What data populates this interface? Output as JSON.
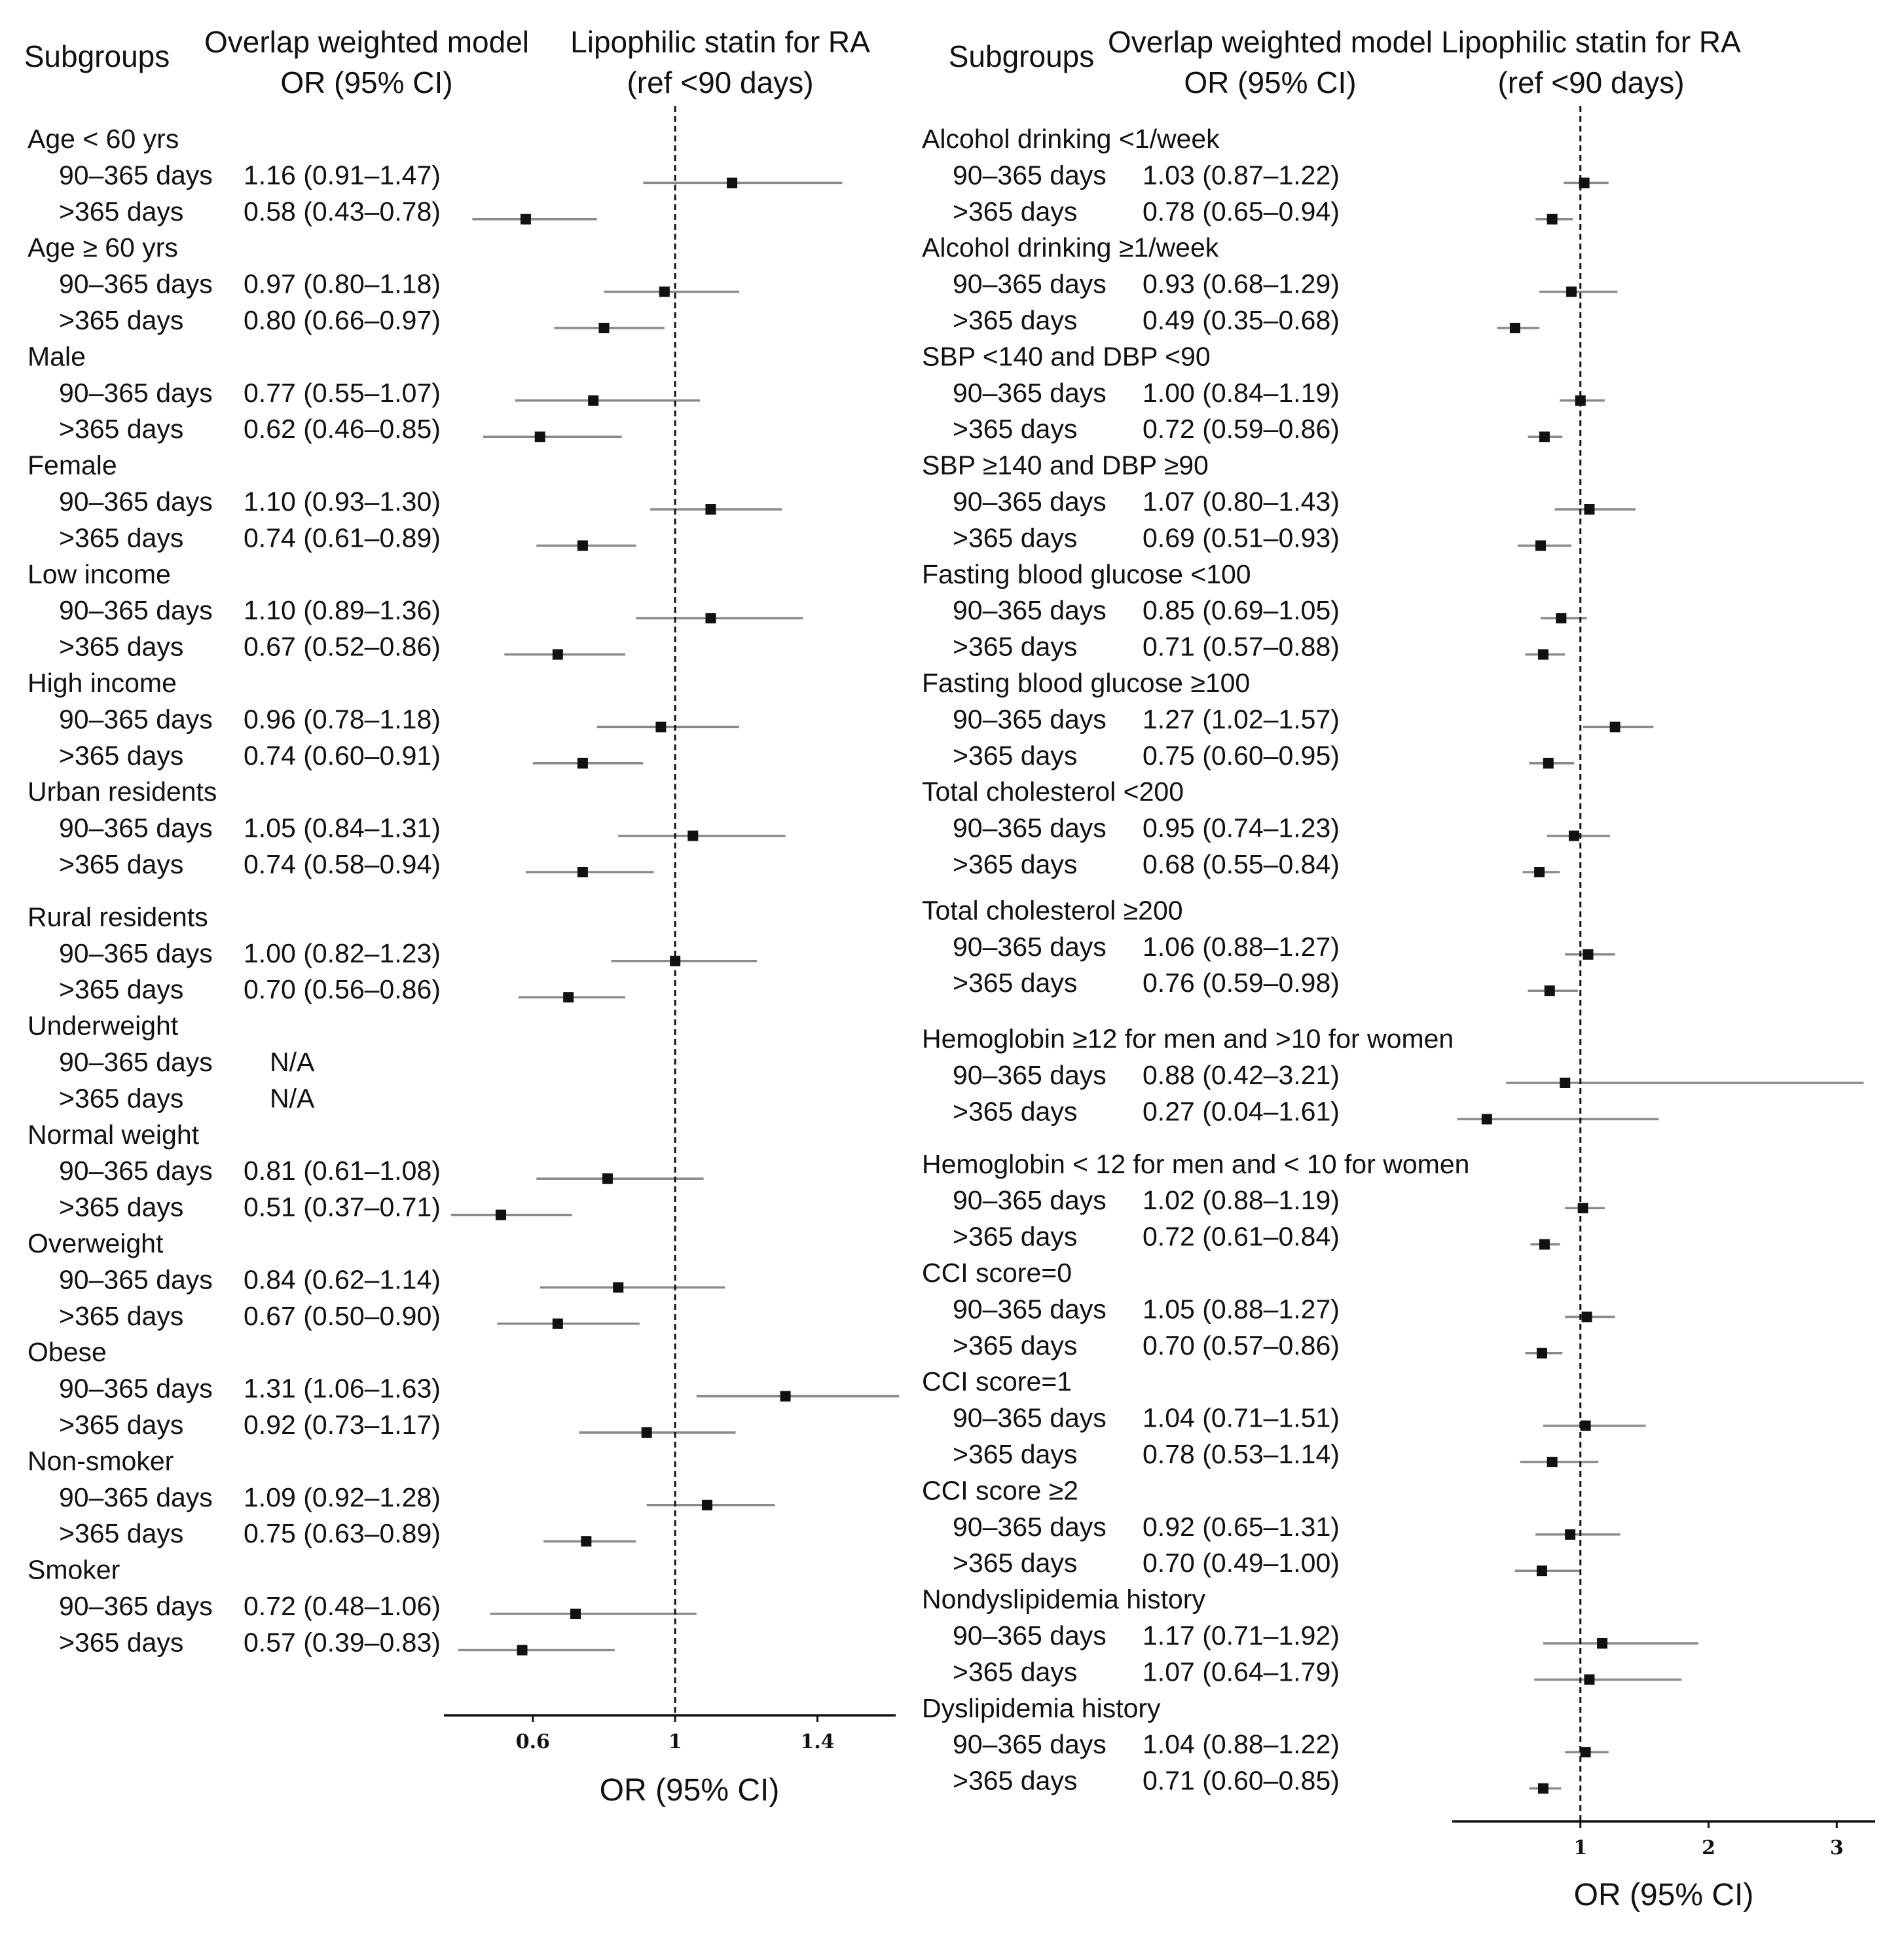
{
  "headers": {
    "left_subgroups": "Subgroups",
    "left_model_l1": "Overlap weighted model",
    "left_model_l2": "OR (95% CI)",
    "left_plot_l1": "Lipophilic statin  for RA",
    "left_plot_l2": "(ref <90 days)",
    "right_subgroups": "Subgroups",
    "right_model_l1": "Overlap weighted model",
    "right_model_l2": "OR (95% CI)",
    "right_plot_l1": "Lipophilic statin  for RA",
    "right_plot_l2": "(ref <90 days)"
  },
  "chart_data": [
    {
      "type": "forest",
      "xlabel": "OR (95% CI)",
      "reference_line": 1,
      "xlim": [
        0.35,
        1.62
      ],
      "xticks": [
        0.6,
        1,
        1.4
      ],
      "xtick_labels": [
        "0.6",
        "1",
        "1.4"
      ],
      "groups": [
        {
          "name": "Age < 60 yrs",
          "rows": [
            {
              "label": "90–365 days",
              "text": "1.16 (0.91–1.47)",
              "or": 1.16,
              "lo": 0.91,
              "hi": 1.47
            },
            {
              "label": ">365 days",
              "text": "0.58 (0.43–0.78)",
              "or": 0.58,
              "lo": 0.43,
              "hi": 0.78
            }
          ]
        },
        {
          "name": "Age ≥ 60 yrs",
          "rows": [
            {
              "label": "90–365 days",
              "text": "0.97 (0.80–1.18)",
              "or": 0.97,
              "lo": 0.8,
              "hi": 1.18
            },
            {
              "label": ">365 days",
              "text": "0.80 (0.66–0.97)",
              "or": 0.8,
              "lo": 0.66,
              "hi": 0.97
            }
          ]
        },
        {
          "name": "Male",
          "rows": [
            {
              "label": "90–365 days",
              "text": "0.77 (0.55–1.07)",
              "or": 0.77,
              "lo": 0.55,
              "hi": 1.07
            },
            {
              "label": ">365 days",
              "text": "0.62 (0.46–0.85)",
              "or": 0.62,
              "lo": 0.46,
              "hi": 0.85
            }
          ]
        },
        {
          "name": "Female",
          "rows": [
            {
              "label": "90–365 days",
              "text": "1.10 (0.93–1.30)",
              "or": 1.1,
              "lo": 0.93,
              "hi": 1.3
            },
            {
              "label": ">365 days",
              "text": "0.74 (0.61–0.89)",
              "or": 0.74,
              "lo": 0.61,
              "hi": 0.89
            }
          ]
        },
        {
          "name": "Low income",
          "rows": [
            {
              "label": "90–365 days",
              "text": "1.10 (0.89–1.36)",
              "or": 1.1,
              "lo": 0.89,
              "hi": 1.36
            },
            {
              "label": ">365 days",
              "text": "0.67 (0.52–0.86)",
              "or": 0.67,
              "lo": 0.52,
              "hi": 0.86
            }
          ]
        },
        {
          "name": "High income",
          "rows": [
            {
              "label": "90–365 days",
              "text": "0.96 (0.78–1.18)",
              "or": 0.96,
              "lo": 0.78,
              "hi": 1.18
            },
            {
              "label": ">365 days",
              "text": "0.74 (0.60–0.91)",
              "or": 0.74,
              "lo": 0.6,
              "hi": 0.91
            }
          ]
        },
        {
          "name": "Urban residents",
          "rows": [
            {
              "label": "90–365 days",
              "text": "1.05 (0.84–1.31)",
              "or": 1.05,
              "lo": 0.84,
              "hi": 1.31
            },
            {
              "label": ">365 days",
              "text": "0.74 (0.58–0.94)",
              "or": 0.74,
              "lo": 0.58,
              "hi": 0.94
            }
          ]
        },
        {
          "name": "Rural residents",
          "rows": [
            {
              "label": "90–365 days",
              "text": "1.00 (0.82–1.23)",
              "or": 1.0,
              "lo": 0.82,
              "hi": 1.23
            },
            {
              "label": ">365 days",
              "text": "0.70 (0.56–0.86)",
              "or": 0.7,
              "lo": 0.56,
              "hi": 0.86
            }
          ]
        },
        {
          "name": "Underweight",
          "rows": [
            {
              "label": "90–365 days",
              "text": "N/A",
              "or": null,
              "lo": null,
              "hi": null
            },
            {
              "label": ">365 days",
              "text": "N/A",
              "or": null,
              "lo": null,
              "hi": null
            }
          ]
        },
        {
          "name": "Normal weight",
          "rows": [
            {
              "label": "90–365 days",
              "text": "0.81 (0.61–1.08)",
              "or": 0.81,
              "lo": 0.61,
              "hi": 1.08
            },
            {
              "label": ">365 days",
              "text": "0.51 (0.37–0.71)",
              "or": 0.51,
              "lo": 0.37,
              "hi": 0.71
            }
          ]
        },
        {
          "name": "Overweight",
          "rows": [
            {
              "label": "90–365 days",
              "text": "0.84 (0.62–1.14)",
              "or": 0.84,
              "lo": 0.62,
              "hi": 1.14
            },
            {
              "label": ">365 days",
              "text": "0.67 (0.50–0.90)",
              "or": 0.67,
              "lo": 0.5,
              "hi": 0.9
            }
          ]
        },
        {
          "name": "Obese",
          "rows": [
            {
              "label": "90–365 days",
              "text": "1.31 (1.06–1.63)",
              "or": 1.31,
              "lo": 1.06,
              "hi": 1.63
            },
            {
              "label": ">365 days",
              "text": "0.92 (0.73–1.17)",
              "or": 0.92,
              "lo": 0.73,
              "hi": 1.17
            }
          ]
        },
        {
          "name": "Non-smoker",
          "rows": [
            {
              "label": "90–365 days",
              "text": "1.09 (0.92–1.28)",
              "or": 1.09,
              "lo": 0.92,
              "hi": 1.28
            },
            {
              "label": ">365 days",
              "text": "0.75 (0.63–0.89)",
              "or": 0.75,
              "lo": 0.63,
              "hi": 0.89
            }
          ]
        },
        {
          "name": "Smoker",
          "rows": [
            {
              "label": "90–365 days",
              "text": "0.72 (0.48–1.06)",
              "or": 0.72,
              "lo": 0.48,
              "hi": 1.06
            },
            {
              "label": ">365 days",
              "text": "0.57 (0.39–0.83)",
              "or": 0.57,
              "lo": 0.39,
              "hi": 0.83
            }
          ]
        }
      ]
    },
    {
      "type": "forest",
      "xlabel": "OR (95% CI)",
      "reference_line": 1,
      "xlim": [
        0.0,
        3.3
      ],
      "xticks": [
        1,
        2,
        3
      ],
      "xtick_labels": [
        "1",
        "2",
        "3"
      ],
      "groups": [
        {
          "name": "Alcohol drinking <1/week",
          "rows": [
            {
              "label": "90–365 days",
              "text": "1.03 (0.87–1.22)",
              "or": 1.03,
              "lo": 0.87,
              "hi": 1.22
            },
            {
              "label": ">365 days",
              "text": "0.78 (0.65–0.94)",
              "or": 0.78,
              "lo": 0.65,
              "hi": 0.94
            }
          ]
        },
        {
          "name": "Alcohol drinking ≥1/week",
          "rows": [
            {
              "label": "90–365 days",
              "text": "0.93 (0.68–1.29)",
              "or": 0.93,
              "lo": 0.68,
              "hi": 1.29
            },
            {
              "label": ">365 days",
              "text": "0.49 (0.35–0.68)",
              "or": 0.49,
              "lo": 0.35,
              "hi": 0.68
            }
          ]
        },
        {
          "name": "SBP <140 and DBP <90",
          "rows": [
            {
              "label": "90–365 days",
              "text": "1.00 (0.84–1.19)",
              "or": 1.0,
              "lo": 0.84,
              "hi": 1.19
            },
            {
              "label": ">365 days",
              "text": "0.72 (0.59–0.86)",
              "or": 0.72,
              "lo": 0.59,
              "hi": 0.86
            }
          ]
        },
        {
          "name": "SBP ≥140 and DBP ≥90",
          "rows": [
            {
              "label": "90–365 days",
              "text": "1.07 (0.80–1.43)",
              "or": 1.07,
              "lo": 0.8,
              "hi": 1.43
            },
            {
              "label": ">365 days",
              "text": "0.69 (0.51–0.93)",
              "or": 0.69,
              "lo": 0.51,
              "hi": 0.93
            }
          ]
        },
        {
          "name": "Fasting blood glucose <100",
          "rows": [
            {
              "label": "90–365 days",
              "text": "0.85 (0.69–1.05)",
              "or": 0.85,
              "lo": 0.69,
              "hi": 1.05
            },
            {
              "label": ">365 days",
              "text": "0.71 (0.57–0.88)",
              "or": 0.71,
              "lo": 0.57,
              "hi": 0.88
            }
          ]
        },
        {
          "name": "Fasting blood glucose ≥100",
          "rows": [
            {
              "label": "90–365 days",
              "text": "1.27 (1.02–1.57)",
              "or": 1.27,
              "lo": 1.02,
              "hi": 1.57
            },
            {
              "label": ">365 days",
              "text": "0.75 (0.60–0.95)",
              "or": 0.75,
              "lo": 0.6,
              "hi": 0.95
            }
          ]
        },
        {
          "name": "Total cholesterol <200",
          "rows": [
            {
              "label": "90–365 days",
              "text": "0.95 (0.74–1.23)",
              "or": 0.95,
              "lo": 0.74,
              "hi": 1.23
            },
            {
              "label": ">365 days",
              "text": "0.68 (0.55–0.84)",
              "or": 0.68,
              "lo": 0.55,
              "hi": 0.84
            }
          ]
        },
        {
          "name": "Total cholesterol ≥200",
          "rows": [
            {
              "label": "90–365 days",
              "text": "1.06 (0.88–1.27)",
              "or": 1.06,
              "lo": 0.88,
              "hi": 1.27
            },
            {
              "label": ">365 days",
              "text": "0.76 (0.59–0.98)",
              "or": 0.76,
              "lo": 0.59,
              "hi": 0.98
            }
          ]
        },
        {
          "name": "Hemoglobin ≥12 for men and >10  for women",
          "rows": [
            {
              "label": "90–365 days",
              "text": "0.88 (0.42–3.21)",
              "or": 0.88,
              "lo": 0.42,
              "hi": 3.21
            },
            {
              "label": ">365 days",
              "text": "0.27 (0.04–1.61)",
              "or": 0.27,
              "lo": 0.04,
              "hi": 1.61
            }
          ]
        },
        {
          "name": "Hemoglobin < 12 for men and < 10  for women",
          "rows": [
            {
              "label": "90–365 days",
              "text": "1.02 (0.88–1.19)",
              "or": 1.02,
              "lo": 0.88,
              "hi": 1.19
            },
            {
              "label": ">365 days",
              "text": "0.72 (0.61–0.84)",
              "or": 0.72,
              "lo": 0.61,
              "hi": 0.84
            }
          ]
        },
        {
          "name": "CCI score=0",
          "rows": [
            {
              "label": "90–365 days",
              "text": "1.05 (0.88–1.27)",
              "or": 1.05,
              "lo": 0.88,
              "hi": 1.27
            },
            {
              "label": ">365 days",
              "text": "0.70 (0.57–0.86)",
              "or": 0.7,
              "lo": 0.57,
              "hi": 0.86
            }
          ]
        },
        {
          "name": "CCI score=1",
          "rows": [
            {
              "label": "90–365 days",
              "text": "1.04 (0.71–1.51)",
              "or": 1.04,
              "lo": 0.71,
              "hi": 1.51
            },
            {
              "label": ">365 days",
              "text": "0.78 (0.53–1.14)",
              "or": 0.78,
              "lo": 0.53,
              "hi": 1.14
            }
          ]
        },
        {
          "name": "CCI score ≥2",
          "rows": [
            {
              "label": "90–365 days",
              "text": "0.92 (0.65–1.31)",
              "or": 0.92,
              "lo": 0.65,
              "hi": 1.31
            },
            {
              "label": ">365 days",
              "text": "0.70 (0.49–1.00)",
              "or": 0.7,
              "lo": 0.49,
              "hi": 1.0
            }
          ]
        },
        {
          "name": "Nondyslipidemia history",
          "rows": [
            {
              "label": "90–365 days",
              "text": "1.17 (0.71–1.92)",
              "or": 1.17,
              "lo": 0.71,
              "hi": 1.92
            },
            {
              "label": ">365 days",
              "text": "1.07 (0.64–1.79)",
              "or": 1.07,
              "lo": 0.64,
              "hi": 1.79
            }
          ]
        },
        {
          "name": "Dyslipidemia history",
          "rows": [
            {
              "label": "90–365 days",
              "text": "1.04 (0.88–1.22)",
              "or": 1.04,
              "lo": 0.88,
              "hi": 1.22
            },
            {
              "label": ">365 days",
              "text": "0.71 (0.60–0.85)",
              "or": 0.71,
              "lo": 0.6,
              "hi": 0.85
            }
          ]
        }
      ]
    }
  ]
}
